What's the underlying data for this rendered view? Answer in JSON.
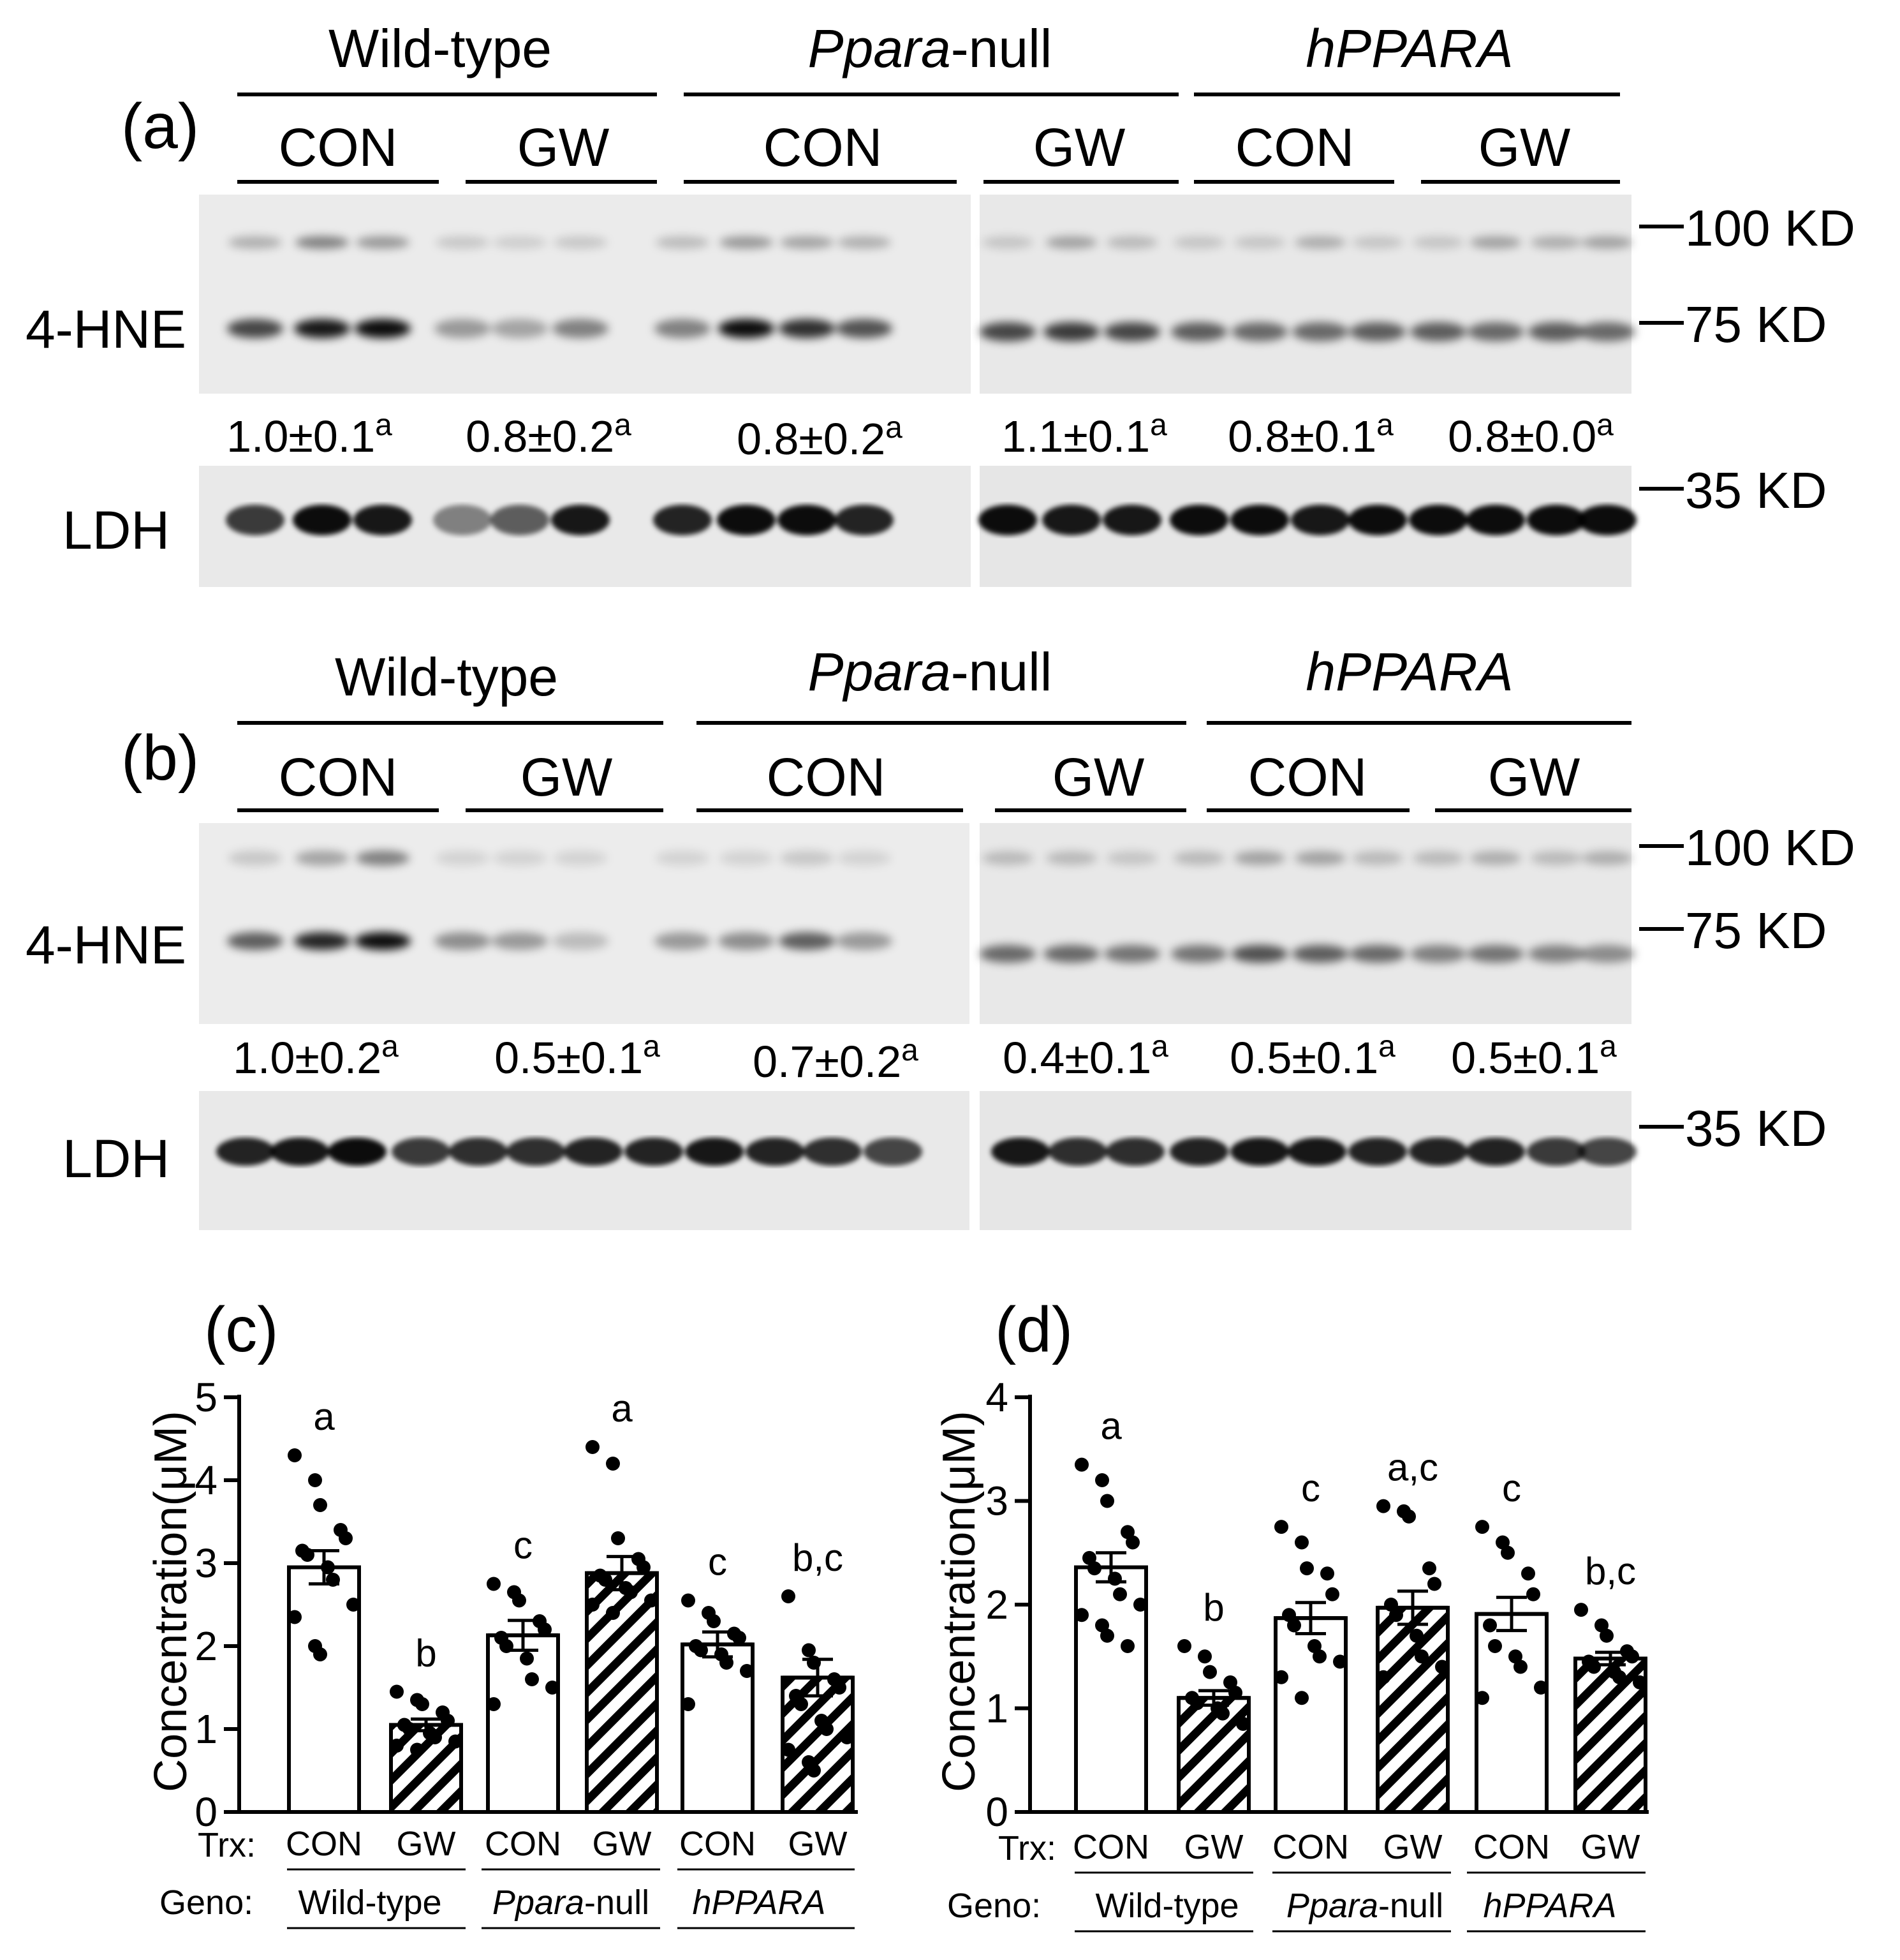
{
  "panels": {
    "a": {
      "label": "(a)",
      "bands": [
        "4-HNE",
        "LDH"
      ],
      "markers": [
        "100 KD",
        "75 KD",
        "35 KD"
      ],
      "ratios": [
        "1.0±0.1",
        "0.8±0.2",
        "0.8±0.2",
        "1.1±0.1",
        "0.8±0.1",
        "0.8±0.0"
      ],
      "ratio_sup": "a"
    },
    "b": {
      "label": "(b)",
      "bands": [
        "4-HNE",
        "LDH"
      ],
      "markers": [
        "100 KD",
        "75 KD",
        "35 KD"
      ],
      "ratios": [
        "1.0±0.2",
        "0.5±0.1",
        "0.7±0.2",
        "0.4±0.1",
        "0.5±0.1",
        "0.5±0.1"
      ],
      "ratio_sup": "a"
    }
  },
  "genotypes": [
    "Wild-type",
    "Ppara-null",
    "hPPARA"
  ],
  "treatments": [
    "CON",
    "GW",
    "CON",
    "GW",
    "CON",
    "GW"
  ],
  "row_labels": {
    "trx": "Trx:",
    "geno": "Geno:"
  },
  "geno_labels": {
    "wt": "Wild-type",
    "null_italic": "Ppara",
    "null_suffix": "-null",
    "h": "hPPARA"
  },
  "chart_data": [
    {
      "panel": "(c)",
      "type": "bar",
      "ylabel": "Concentration(μM)",
      "ylim": [
        0,
        5
      ],
      "yticks": [
        "0",
        "1",
        "2",
        "3",
        "4",
        "5"
      ],
      "categories": [
        "CON Wild-type",
        "GW Wild-type",
        "CON Ppara-null",
        "GW Ppara-null",
        "CON hPPARA",
        "GW hPPARA"
      ],
      "values": [
        2.95,
        1.05,
        2.13,
        2.88,
        2.02,
        1.62
      ],
      "sem": [
        0.2,
        0.07,
        0.18,
        0.2,
        0.15,
        0.22
      ],
      "hatched": [
        false,
        true,
        false,
        true,
        false,
        true
      ],
      "letters": [
        "a",
        "b",
        "c",
        "a",
        "c",
        "b,c"
      ],
      "points": [
        [
          4.3,
          4.0,
          3.7,
          3.4,
          3.3,
          3.15,
          3.1,
          2.95,
          2.8,
          2.5,
          2.35,
          2.0,
          1.9
        ],
        [
          1.45,
          1.35,
          1.3,
          1.2,
          1.1,
          1.05,
          1.0,
          0.95,
          0.9,
          0.85,
          0.8,
          0.75
        ],
        [
          2.75,
          2.65,
          2.55,
          2.3,
          2.2,
          2.1,
          2.0,
          1.85,
          1.6,
          1.5,
          1.3
        ],
        [
          4.4,
          4.2,
          3.3,
          3.05,
          2.95,
          2.85,
          2.8,
          2.7,
          2.65,
          2.55,
          2.5,
          2.4
        ],
        [
          2.55,
          2.4,
          2.3,
          2.15,
          2.1,
          2.0,
          1.95,
          1.9,
          1.8,
          1.7,
          1.3
        ],
        [
          2.6,
          1.95,
          1.8,
          1.6,
          1.5,
          1.4,
          1.3,
          1.1,
          1.0,
          0.9,
          0.75,
          0.6,
          0.5
        ]
      ]
    },
    {
      "panel": "(d)",
      "type": "bar",
      "ylabel": "Concentration(μM)",
      "ylim": [
        0,
        4
      ],
      "yticks": [
        "0",
        "1",
        "2",
        "3",
        "4"
      ],
      "categories": [
        "CON Wild-type",
        "GW Wild-type",
        "CON Ppara-null",
        "GW Ppara-null",
        "CON hPPARA",
        "GW hPPARA"
      ],
      "values": [
        2.36,
        1.1,
        1.87,
        1.97,
        1.91,
        1.48
      ],
      "sem": [
        0.14,
        0.07,
        0.15,
        0.16,
        0.16,
        0.06
      ],
      "hatched": [
        false,
        true,
        false,
        true,
        false,
        true
      ],
      "letters": [
        "a",
        "b",
        "c",
        "a,c",
        "c",
        "b,c"
      ],
      "points": [
        [
          3.35,
          3.2,
          3.0,
          2.7,
          2.6,
          2.45,
          2.35,
          2.25,
          2.1,
          2.0,
          1.9,
          1.8,
          1.7,
          1.6
        ],
        [
          1.6,
          1.5,
          1.35,
          1.25,
          1.15,
          1.1,
          1.05,
          1.0,
          0.95,
          0.85
        ],
        [
          2.75,
          2.6,
          2.35,
          2.3,
          2.1,
          1.9,
          1.8,
          1.6,
          1.5,
          1.45,
          1.3,
          1.1
        ],
        [
          2.95,
          2.9,
          2.85,
          2.35,
          2.2,
          2.0,
          1.9,
          1.7,
          1.5,
          1.4,
          1.3
        ],
        [
          2.75,
          2.6,
          2.5,
          2.3,
          2.1,
          1.8,
          1.6,
          1.5,
          1.4,
          1.2,
          1.1
        ],
        [
          1.95,
          1.8,
          1.7,
          1.55,
          1.5,
          1.45,
          1.4,
          1.35,
          1.3,
          1.25
        ]
      ]
    }
  ]
}
